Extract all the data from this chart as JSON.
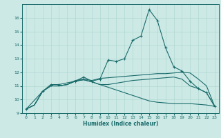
{
  "xlabel": "Humidex (Indice chaleur)",
  "bg_color": "#cce9e5",
  "line_color": "#1a6b6b",
  "grid_color": "#aad4cf",
  "xlim": [
    -0.5,
    23.5
  ],
  "ylim": [
    9,
    17
  ],
  "yticks": [
    9,
    10,
    11,
    12,
    13,
    14,
    15,
    16
  ],
  "xticks": [
    0,
    1,
    2,
    3,
    4,
    5,
    6,
    7,
    8,
    9,
    10,
    11,
    12,
    13,
    14,
    15,
    16,
    17,
    18,
    19,
    20,
    21,
    22,
    23
  ],
  "series": [
    {
      "x": [
        0,
        2,
        3,
        4,
        6,
        7,
        8,
        9,
        10,
        11,
        12,
        13,
        14,
        15,
        16,
        17,
        18,
        19,
        20,
        21,
        22,
        23
      ],
      "y": [
        9.3,
        10.6,
        11.1,
        11.1,
        11.35,
        11.65,
        11.35,
        11.5,
        12.9,
        12.8,
        13.0,
        14.35,
        14.65,
        16.6,
        15.8,
        13.8,
        12.4,
        12.1,
        11.35,
        10.8,
        10.5,
        9.5
      ],
      "marker": true
    },
    {
      "x": [
        0,
        1,
        2,
        3,
        4,
        5,
        6,
        7,
        8,
        9,
        10,
        11,
        12,
        13,
        14,
        15,
        16,
        17,
        18,
        19,
        20,
        21,
        22,
        23
      ],
      "y": [
        9.3,
        9.6,
        10.6,
        11.0,
        11.0,
        11.1,
        11.4,
        11.5,
        11.4,
        11.55,
        11.6,
        11.65,
        11.7,
        11.75,
        11.8,
        11.85,
        11.9,
        11.9,
        11.95,
        12.0,
        11.95,
        11.5,
        11.0,
        9.5
      ],
      "marker": false
    },
    {
      "x": [
        0,
        1,
        2,
        3,
        4,
        5,
        6,
        7,
        8,
        9,
        10,
        11,
        12,
        13,
        14,
        15,
        16,
        17,
        18,
        19,
        20,
        21,
        22,
        23
      ],
      "y": [
        9.3,
        9.6,
        10.6,
        11.0,
        11.0,
        11.1,
        11.35,
        11.45,
        11.3,
        11.1,
        10.9,
        10.7,
        10.5,
        10.3,
        10.1,
        9.9,
        9.8,
        9.75,
        9.7,
        9.7,
        9.7,
        9.65,
        9.6,
        9.5
      ],
      "marker": false
    },
    {
      "x": [
        0,
        1,
        2,
        3,
        4,
        5,
        6,
        7,
        8,
        9,
        10,
        11,
        12,
        13,
        14,
        15,
        16,
        17,
        18,
        19,
        20,
        21,
        22,
        23
      ],
      "y": [
        9.3,
        9.6,
        10.6,
        11.0,
        11.0,
        11.1,
        11.35,
        11.45,
        11.3,
        11.1,
        11.1,
        11.2,
        11.3,
        11.4,
        11.45,
        11.5,
        11.55,
        11.6,
        11.65,
        11.5,
        11.0,
        10.8,
        10.5,
        9.5
      ],
      "marker": false
    }
  ]
}
